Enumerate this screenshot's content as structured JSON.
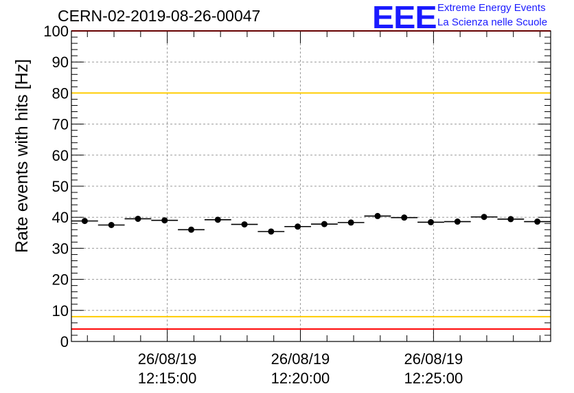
{
  "header": {
    "run_id": "CERN-02-2019-08-26-00047",
    "logo_mark": "EEE",
    "logo_line1": "Extreme Energy Events",
    "logo_line2": "La Scienza nelle Scuole"
  },
  "colors": {
    "marker": "#000000",
    "red_limit": "#ff0000",
    "yellow_limit": "#ffcc00",
    "grid": "#999999",
    "logo": "#1a1aff"
  },
  "chart_data": {
    "type": "scatter",
    "title": "CERN-02-2019-08-26-00047",
    "xlabel": "",
    "ylabel": "Rate events with hits [Hz]",
    "ylim": [
      0,
      100
    ],
    "grid": true,
    "y_ticks": [
      0,
      10,
      20,
      30,
      40,
      50,
      60,
      70,
      80,
      90,
      100
    ],
    "x_ticks": [
      {
        "minute": 15,
        "date": "26/08/19",
        "time": "12:15:00"
      },
      {
        "minute": 20,
        "date": "26/08/19",
        "time": "12:20:00"
      },
      {
        "minute": 25,
        "date": "26/08/19",
        "time": "12:25:00"
      }
    ],
    "xlim_minutes": [
      11.4,
      29.4
    ],
    "bin_width_minutes": 1,
    "points": [
      {
        "x": 11.9,
        "y": 38.8
      },
      {
        "x": 12.9,
        "y": 37.5
      },
      {
        "x": 13.9,
        "y": 39.5
      },
      {
        "x": 14.9,
        "y": 39.0
      },
      {
        "x": 15.9,
        "y": 36.0
      },
      {
        "x": 16.9,
        "y": 39.2
      },
      {
        "x": 17.9,
        "y": 37.7
      },
      {
        "x": 18.9,
        "y": 35.4
      },
      {
        "x": 19.9,
        "y": 37.0
      },
      {
        "x": 20.9,
        "y": 37.8
      },
      {
        "x": 21.9,
        "y": 38.3
      },
      {
        "x": 22.9,
        "y": 40.4
      },
      {
        "x": 23.9,
        "y": 39.9
      },
      {
        "x": 24.9,
        "y": 38.4
      },
      {
        "x": 25.9,
        "y": 38.6
      },
      {
        "x": 26.9,
        "y": 40.1
      },
      {
        "x": 27.9,
        "y": 39.4
      },
      {
        "x": 28.9,
        "y": 38.6
      }
    ],
    "reference_lines": [
      {
        "name": "upper-red-limit",
        "y": 100,
        "color": "#ff0000"
      },
      {
        "name": "upper-yellow-limit",
        "y": 80,
        "color": "#ffcc00"
      },
      {
        "name": "lower-yellow-limit",
        "y": 8,
        "color": "#ffcc00"
      },
      {
        "name": "lower-red-limit",
        "y": 4,
        "color": "#ff0000"
      }
    ]
  }
}
